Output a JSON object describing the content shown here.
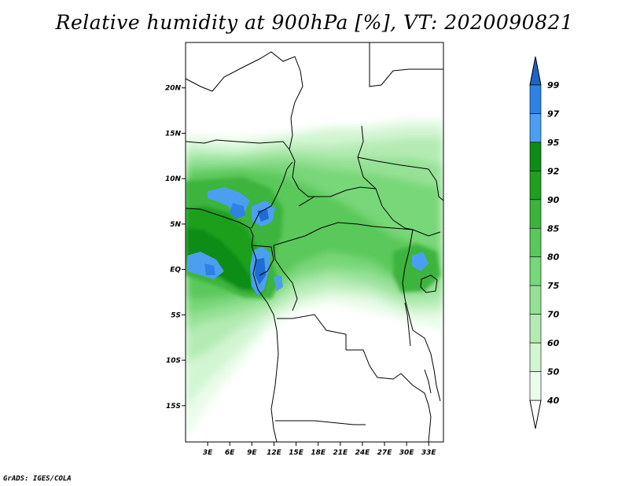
{
  "title": "Relative humidity at 900hPa [%], VT: 2020090821",
  "credit": "GrADS: IGES/COLA",
  "map": {
    "lat_range": [
      -19,
      25
    ],
    "lon_range": [
      0,
      35
    ],
    "lat_ticks": [
      {
        "value": 20,
        "label": "20N"
      },
      {
        "value": 15,
        "label": "15N"
      },
      {
        "value": 10,
        "label": "10N"
      },
      {
        "value": 5,
        "label": "5N"
      },
      {
        "value": 0,
        "label": "EQ"
      },
      {
        "value": -5,
        "label": "5S"
      },
      {
        "value": -10,
        "label": "10S"
      },
      {
        "value": -15,
        "label": "15S"
      }
    ],
    "lon_ticks": [
      {
        "value": 3,
        "label": "3E"
      },
      {
        "value": 6,
        "label": "6E"
      },
      {
        "value": 9,
        "label": "9E"
      },
      {
        "value": 12,
        "label": "12E"
      },
      {
        "value": 15,
        "label": "15E"
      },
      {
        "value": 18,
        "label": "18E"
      },
      {
        "value": 21,
        "label": "21E"
      },
      {
        "value": 24,
        "label": "24E"
      },
      {
        "value": 27,
        "label": "27E"
      },
      {
        "value": 30,
        "label": "30E"
      },
      {
        "value": 33,
        "label": "33E"
      }
    ]
  },
  "colorbar": {
    "levels": [
      {
        "label": "99",
        "color": "#1e6ed2"
      },
      {
        "label": "97",
        "color": "#2e82e6"
      },
      {
        "label": "95",
        "color": "#4c9ff0"
      },
      {
        "label": "92",
        "color": "#0e8c16"
      },
      {
        "label": "90",
        "color": "#1ea01e"
      },
      {
        "label": "85",
        "color": "#3cb43c"
      },
      {
        "label": "80",
        "color": "#5ac85a"
      },
      {
        "label": "75",
        "color": "#78d778"
      },
      {
        "label": "70",
        "color": "#96e196"
      },
      {
        "label": "60",
        "color": "#b4ebb4"
      },
      {
        "label": "50",
        "color": "#d2f5d2"
      },
      {
        "label": "40",
        "color": "#eafcea"
      }
    ],
    "top_arrow_color": "#1e64c8",
    "bottom_arrow_color": "#ffffff"
  }
}
